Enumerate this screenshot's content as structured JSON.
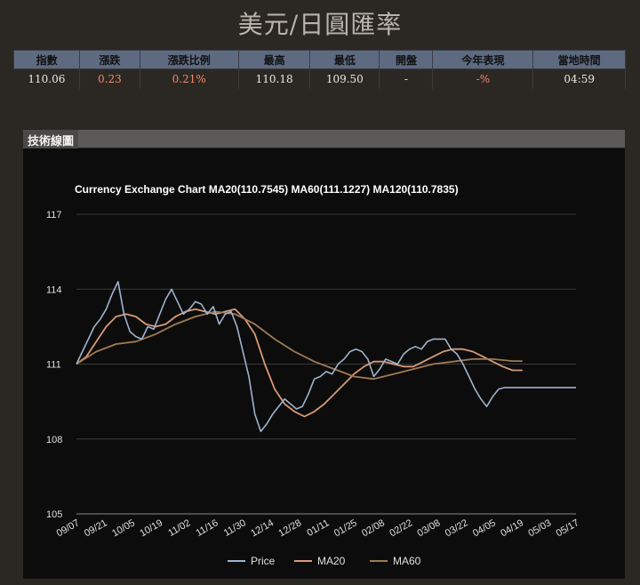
{
  "page": {
    "title": "美元/日圓匯率"
  },
  "quote": {
    "headers": [
      "指數",
      "漲跌",
      "漲跌比例",
      "最高",
      "最低",
      "開盤",
      "今年表現",
      "當地時間"
    ],
    "values": [
      "110.06",
      "0.23",
      "0.21%",
      "110.18",
      "109.50",
      "-",
      "-%",
      "04:59"
    ]
  },
  "section": {
    "title": "技術線圖"
  },
  "colors": {
    "price": "#9fb3cf",
    "ma20": "#d99a78",
    "ma60": "#a07a52",
    "up": "#f08a6a"
  },
  "chart_data": {
    "type": "line",
    "title": "Currency Exchange Chart MA20(110.7545) MA60(111.1227) MA120(110.7835)",
    "ylim": [
      105,
      117
    ],
    "yticks": [
      105,
      108,
      111,
      114,
      117
    ],
    "x_tick_labels": [
      "09/07",
      "09/21",
      "10/05",
      "10/19",
      "11/02",
      "11/16",
      "11/30",
      "12/14",
      "12/28",
      "01/11",
      "01/25",
      "02/08",
      "02/22",
      "03/08",
      "03/22",
      "04/05",
      "04/19",
      "05/03",
      "05/17"
    ],
    "legend_position": "bottom",
    "grid": true,
    "series": [
      {
        "name": "Price",
        "x": [
          0,
          3,
          6,
          9,
          12,
          15,
          18,
          21,
          24,
          27,
          30,
          33,
          36,
          39,
          42,
          45,
          48,
          51,
          54,
          57,
          60,
          63,
          66,
          69,
          72,
          75,
          78,
          81,
          84,
          87,
          90,
          93,
          96,
          99,
          102,
          105,
          108,
          111,
          114,
          117,
          120,
          123,
          126,
          129,
          132,
          135,
          138,
          141,
          144,
          147,
          150,
          153,
          156,
          159,
          162,
          165,
          168,
          171,
          174,
          177,
          180,
          183,
          186,
          189,
          192,
          195,
          198,
          201,
          204,
          207,
          210,
          213,
          216,
          219,
          222,
          225,
          228,
          231,
          232,
          235,
          238,
          241,
          244,
          247,
          250,
          252
        ],
        "y": [
          111.0,
          111.5,
          112.0,
          112.5,
          112.8,
          113.2,
          113.8,
          114.3,
          113.0,
          112.3,
          112.1,
          112.0,
          112.5,
          112.4,
          113.0,
          113.6,
          114.0,
          113.5,
          113.0,
          113.2,
          113.5,
          113.4,
          113.0,
          113.3,
          112.6,
          113.0,
          113.1,
          112.5,
          111.5,
          110.5,
          109.0,
          108.3,
          108.6,
          109.0,
          109.3,
          109.6,
          109.4,
          109.2,
          109.3,
          109.8,
          110.4,
          110.5,
          110.7,
          110.6,
          111.0,
          111.2,
          111.5,
          111.6,
          111.5,
          111.2,
          110.5,
          110.8,
          111.2,
          111.1,
          111.0,
          111.4,
          111.6,
          111.7,
          111.6,
          111.9,
          112.0,
          112.0,
          112.0,
          111.6,
          111.4,
          111.0,
          110.5,
          110.0,
          109.6,
          109.3,
          109.7,
          110.0,
          110.06,
          110.06,
          110.06,
          110.06,
          110.06,
          110.06,
          110.06,
          110.06,
          110.06,
          110.06,
          110.06,
          110.06,
          110.06,
          110.06
        ],
        "mode": "smooth"
      },
      {
        "name": "MA20",
        "x": [
          0,
          5,
          10,
          15,
          20,
          25,
          30,
          35,
          40,
          45,
          50,
          55,
          60,
          65,
          70,
          75,
          80,
          85,
          90,
          95,
          100,
          105,
          110,
          115,
          120,
          125,
          130,
          135,
          140,
          145,
          150,
          155,
          160,
          165,
          170,
          175,
          180,
          185,
          190,
          195,
          200,
          205,
          210,
          215,
          220,
          225
        ],
        "y": [
          111.0,
          111.3,
          111.9,
          112.5,
          112.9,
          113.0,
          112.9,
          112.6,
          112.5,
          112.6,
          112.9,
          113.1,
          113.2,
          113.1,
          113.0,
          113.1,
          113.2,
          112.8,
          112.2,
          111.0,
          110.0,
          109.4,
          109.1,
          108.9,
          109.1,
          109.4,
          109.8,
          110.2,
          110.6,
          110.9,
          111.1,
          111.1,
          111.0,
          110.9,
          110.9,
          111.1,
          111.3,
          111.5,
          111.6,
          111.6,
          111.5,
          111.3,
          111.1,
          110.9,
          110.75,
          110.75
        ]
      },
      {
        "name": "MA60",
        "x": [
          0,
          10,
          20,
          30,
          40,
          50,
          60,
          70,
          80,
          90,
          100,
          110,
          120,
          130,
          140,
          150,
          160,
          170,
          180,
          190,
          200,
          210,
          220,
          225
        ],
        "y": [
          111.0,
          111.5,
          111.8,
          111.9,
          112.2,
          112.6,
          112.9,
          113.1,
          113.0,
          112.6,
          112.0,
          111.5,
          111.1,
          110.8,
          110.5,
          110.4,
          110.6,
          110.8,
          111.0,
          111.1,
          111.2,
          111.2,
          111.12,
          111.12
        ]
      }
    ]
  }
}
